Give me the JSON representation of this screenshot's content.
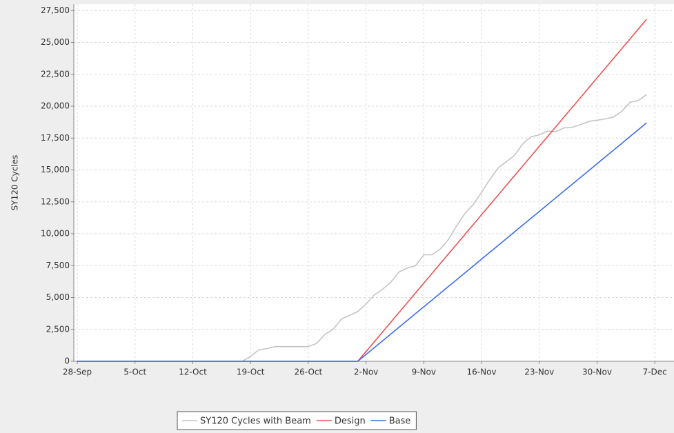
{
  "chart_data": {
    "type": "line",
    "y_label": "SY120 Cycles",
    "categories": [
      "28-Sep",
      "29-Sep",
      "30-Sep",
      "1-Oct",
      "2-Oct",
      "3-Oct",
      "4-Oct",
      "5-Oct",
      "6-Oct",
      "7-Oct",
      "8-Oct",
      "9-Oct",
      "10-Oct",
      "11-Oct",
      "12-Oct",
      "13-Oct",
      "14-Oct",
      "15-Oct",
      "16-Oct",
      "17-Oct",
      "18-Oct",
      "19-Oct",
      "20-Oct",
      "21-Oct",
      "22-Oct",
      "23-Oct",
      "24-Oct",
      "25-Oct",
      "26-Oct",
      "27-Oct",
      "28-Oct",
      "29-Oct",
      "30-Oct",
      "31-Oct",
      "1-Nov",
      "2-Nov",
      "3-Nov",
      "4-Nov",
      "5-Nov",
      "6-Nov",
      "7-Nov",
      "8-Nov",
      "9-Nov",
      "10-Nov",
      "11-Nov",
      "12-Nov",
      "13-Nov",
      "14-Nov",
      "15-Nov",
      "16-Nov",
      "17-Nov",
      "18-Nov",
      "19-Nov",
      "20-Nov",
      "21-Nov",
      "22-Nov",
      "23-Nov",
      "24-Nov",
      "25-Nov",
      "26-Nov",
      "27-Nov",
      "28-Nov",
      "29-Nov",
      "30-Nov",
      "1-Dec",
      "2-Dec",
      "3-Dec",
      "4-Dec",
      "5-Dec",
      "6-Dec",
      "7-Dec"
    ],
    "series": [
      {
        "name": "SY120 Cycles with Beam",
        "color": "#c4c4c4",
        "values": [
          0,
          0,
          0,
          0,
          0,
          0,
          0,
          0,
          0,
          0,
          0,
          0,
          0,
          0,
          0,
          0,
          0,
          0,
          0,
          0,
          0,
          380,
          900,
          1000,
          1150,
          1150,
          1150,
          1150,
          1150,
          1400,
          2100,
          2500,
          3300,
          3600,
          3900,
          4500,
          5200,
          5650,
          6200,
          7000,
          7300,
          7500,
          8350,
          8350,
          8800,
          9550,
          10650,
          11600,
          12300,
          13250,
          14250,
          15150,
          15650,
          16150,
          17050,
          17600,
          17750,
          18050,
          18000,
          18300,
          18350,
          18550,
          18800,
          18900,
          19000,
          19150,
          19600,
          20300,
          20450,
          20900,
          null
        ]
      },
      {
        "name": "Design",
        "color": "#f05050",
        "values": [
          0,
          0,
          0,
          0,
          0,
          0,
          0,
          0,
          0,
          0,
          0,
          0,
          0,
          0,
          0,
          0,
          0,
          0,
          0,
          0,
          0,
          0,
          0,
          0,
          0,
          0,
          0,
          0,
          0,
          0,
          0,
          0,
          0,
          0,
          0,
          766,
          1532,
          2298,
          3064,
          3830,
          4596,
          5362,
          6128,
          6894,
          7660,
          8426,
          9192,
          9958,
          10724,
          11490,
          12256,
          13022,
          13788,
          14554,
          15320,
          16086,
          16852,
          17618,
          18384,
          19150,
          19916,
          20682,
          21448,
          22214,
          22980,
          23746,
          24512,
          25278,
          26044,
          26810,
          null
        ]
      },
      {
        "name": "Base",
        "color": "#3c6cf0",
        "values": [
          0,
          0,
          0,
          0,
          0,
          0,
          0,
          0,
          0,
          0,
          0,
          0,
          0,
          0,
          0,
          0,
          0,
          0,
          0,
          0,
          0,
          0,
          0,
          0,
          0,
          0,
          0,
          0,
          0,
          0,
          0,
          0,
          0,
          0,
          0,
          534,
          1068,
          1602,
          2136,
          2670,
          3204,
          3738,
          4272,
          4806,
          5340,
          5874,
          6408,
          6942,
          7476,
          8010,
          8544,
          9078,
          9612,
          10146,
          10680,
          11214,
          11748,
          12282,
          12816,
          13350,
          13884,
          14418,
          14952,
          15486,
          16020,
          16554,
          17088,
          17622,
          18156,
          18690,
          null
        ]
      }
    ],
    "ylim": [
      0,
      28000
    ],
    "yticks": [
      0,
      {
        "value": 2500,
        "label": "2,500"
      },
      {
        "value": 5000,
        "label": "5,000"
      },
      {
        "value": 7500,
        "label": "7,500"
      },
      {
        "value": 10000,
        "label": "10,000"
      },
      {
        "value": 12500,
        "label": "12,500"
      },
      {
        "value": 15000,
        "label": "15,000"
      },
      {
        "value": 17500,
        "label": "17,500"
      },
      {
        "value": 20000,
        "label": "20,000"
      },
      {
        "value": 22500,
        "label": "22,500"
      },
      {
        "value": 25000,
        "label": "25,000"
      },
      {
        "value": 27500,
        "label": "27,500"
      }
    ],
    "grid": true
  }
}
